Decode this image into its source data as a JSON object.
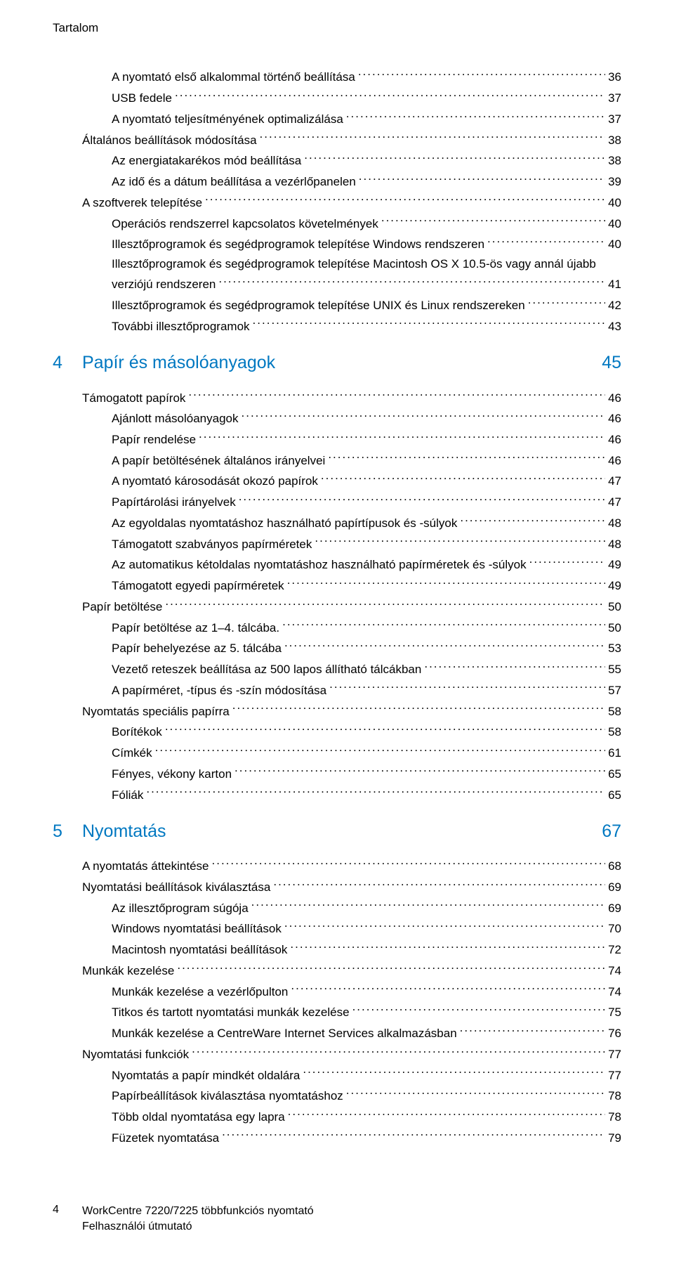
{
  "header": "Tartalom",
  "colors": {
    "section_color": "#0078c1",
    "text_color": "#000000",
    "bg": "#ffffff"
  },
  "typography": {
    "body_size": 17,
    "section_size": 25
  },
  "entries": [
    {
      "type": "line",
      "indent": 2,
      "label": "A nyomtató első alkalommal történő beállítása",
      "page": "36"
    },
    {
      "type": "line",
      "indent": 2,
      "label": "USB fedele",
      "page": "37"
    },
    {
      "type": "line",
      "indent": 2,
      "label": "A nyomtató teljesítményének optimalizálása",
      "page": "37"
    },
    {
      "type": "line",
      "indent": 1,
      "label": "Általános beállítások módosítása",
      "page": "38"
    },
    {
      "type": "line",
      "indent": 2,
      "label": "Az energiatakarékos mód beállítása",
      "page": "38"
    },
    {
      "type": "line",
      "indent": 2,
      "label": "Az idő és a dátum beállítása a vezérlőpanelen",
      "page": "39"
    },
    {
      "type": "line",
      "indent": 1,
      "label": "A szoftverek telepítése",
      "page": "40"
    },
    {
      "type": "line",
      "indent": 2,
      "label": "Operációs rendszerrel kapcsolatos követelmények",
      "page": "40"
    },
    {
      "type": "line",
      "indent": 2,
      "label": "Illesztőprogramok és segédprogramok telepítése Windows rendszeren",
      "page": "40"
    },
    {
      "type": "twoline",
      "indent": 2,
      "label1": "Illesztőprogramok és segédprogramok telepítése Macintosh OS X 10.5-ös vagy annál újabb",
      "label2": "verziójú rendszeren",
      "page": "41"
    },
    {
      "type": "line",
      "indent": 2,
      "label": "Illesztőprogramok és segédprogramok telepítése UNIX és Linux rendszereken",
      "page": "42"
    },
    {
      "type": "line",
      "indent": 2,
      "label": "További illesztőprogramok",
      "page": "43"
    },
    {
      "type": "section",
      "number": "4",
      "title": "Papír és másolóanyagok",
      "page": "45"
    },
    {
      "type": "line",
      "indent": 1,
      "label": "Támogatott papírok",
      "page": "46"
    },
    {
      "type": "line",
      "indent": 2,
      "label": "Ajánlott másolóanyagok",
      "page": "46"
    },
    {
      "type": "line",
      "indent": 2,
      "label": "Papír rendelése",
      "page": "46"
    },
    {
      "type": "line",
      "indent": 2,
      "label": "A papír betöltésének általános irányelvei",
      "page": "46"
    },
    {
      "type": "line",
      "indent": 2,
      "label": "A nyomtató károsodását okozó papírok",
      "page": "47"
    },
    {
      "type": "line",
      "indent": 2,
      "label": "Papírtárolási irányelvek",
      "page": "47"
    },
    {
      "type": "line",
      "indent": 2,
      "label": "Az egyoldalas nyomtatáshoz használható papírtípusok és -súlyok",
      "page": "48"
    },
    {
      "type": "line",
      "indent": 2,
      "label": "Támogatott szabványos papírméretek",
      "page": "48"
    },
    {
      "type": "line",
      "indent": 2,
      "label": "Az automatikus kétoldalas nyomtatáshoz használható papírméretek és -súlyok",
      "page": "49"
    },
    {
      "type": "line",
      "indent": 2,
      "label": "Támogatott egyedi papírméretek",
      "page": "49"
    },
    {
      "type": "line",
      "indent": 1,
      "label": "Papír betöltése",
      "page": "50"
    },
    {
      "type": "line",
      "indent": 2,
      "label": "Papír betöltése az 1–4. tálcába.",
      "page": "50"
    },
    {
      "type": "line",
      "indent": 2,
      "label": "Papír behelyezése az 5. tálcába",
      "page": "53"
    },
    {
      "type": "line",
      "indent": 2,
      "label": "Vezető reteszek beállítása az 500 lapos állítható tálcákban",
      "page": "55"
    },
    {
      "type": "line",
      "indent": 2,
      "label": "A papírméret, -típus és -szín módosítása",
      "page": "57"
    },
    {
      "type": "line",
      "indent": 1,
      "label": "Nyomtatás speciális papírra",
      "page": "58"
    },
    {
      "type": "line",
      "indent": 2,
      "label": "Borítékok",
      "page": "58"
    },
    {
      "type": "line",
      "indent": 2,
      "label": "Címkék",
      "page": "61"
    },
    {
      "type": "line",
      "indent": 2,
      "label": "Fényes, vékony karton",
      "page": "65"
    },
    {
      "type": "line",
      "indent": 2,
      "label": "Fóliák",
      "page": "65"
    },
    {
      "type": "section",
      "number": "5",
      "title": "Nyomtatás",
      "page": "67"
    },
    {
      "type": "line",
      "indent": 1,
      "label": "A nyomtatás áttekintése",
      "page": "68"
    },
    {
      "type": "line",
      "indent": 1,
      "label": "Nyomtatási beállítások kiválasztása",
      "page": "69"
    },
    {
      "type": "line",
      "indent": 2,
      "label": "Az illesztőprogram súgója",
      "page": "69"
    },
    {
      "type": "line",
      "indent": 2,
      "label": "Windows nyomtatási beállítások",
      "page": "70"
    },
    {
      "type": "line",
      "indent": 2,
      "label": "Macintosh nyomtatási beállítások",
      "page": "72"
    },
    {
      "type": "line",
      "indent": 1,
      "label": "Munkák kezelése",
      "page": "74"
    },
    {
      "type": "line",
      "indent": 2,
      "label": "Munkák kezelése a vezérlőpulton",
      "page": "74"
    },
    {
      "type": "line",
      "indent": 2,
      "label": "Titkos és tartott nyomtatási munkák kezelése",
      "page": "75"
    },
    {
      "type": "line",
      "indent": 2,
      "label": "Munkák kezelése a CentreWare Internet Services alkalmazásban",
      "page": "76"
    },
    {
      "type": "line",
      "indent": 1,
      "label": "Nyomtatási funkciók",
      "page": "77"
    },
    {
      "type": "line",
      "indent": 2,
      "label": "Nyomtatás a papír mindkét oldalára",
      "page": "77"
    },
    {
      "type": "line",
      "indent": 2,
      "label": "Papírbeállítások kiválasztása nyomtatáshoz",
      "page": "78"
    },
    {
      "type": "line",
      "indent": 2,
      "label": "Több oldal nyomtatása egy lapra",
      "page": "78"
    },
    {
      "type": "line",
      "indent": 2,
      "label": "Füzetek nyomtatása",
      "page": "79"
    }
  ],
  "footer": {
    "page": "4",
    "line1": "WorkCentre 7220/7225 többfunkciós nyomtató",
    "line2": "Felhasználói útmutató"
  }
}
